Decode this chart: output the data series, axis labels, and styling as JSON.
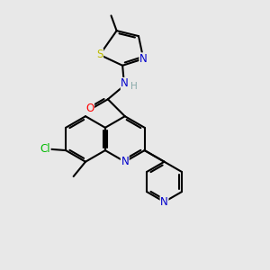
{
  "background_color": "#e8e8e8",
  "bond_color": "#000000",
  "bond_width": 1.5,
  "dbo": 0.08,
  "atom_colors": {
    "N": "#0000cc",
    "O": "#ff0000",
    "S": "#bbbb00",
    "Cl": "#00bb00",
    "C": "#000000",
    "H": "#88aaaa"
  },
  "font_size": 8.5
}
